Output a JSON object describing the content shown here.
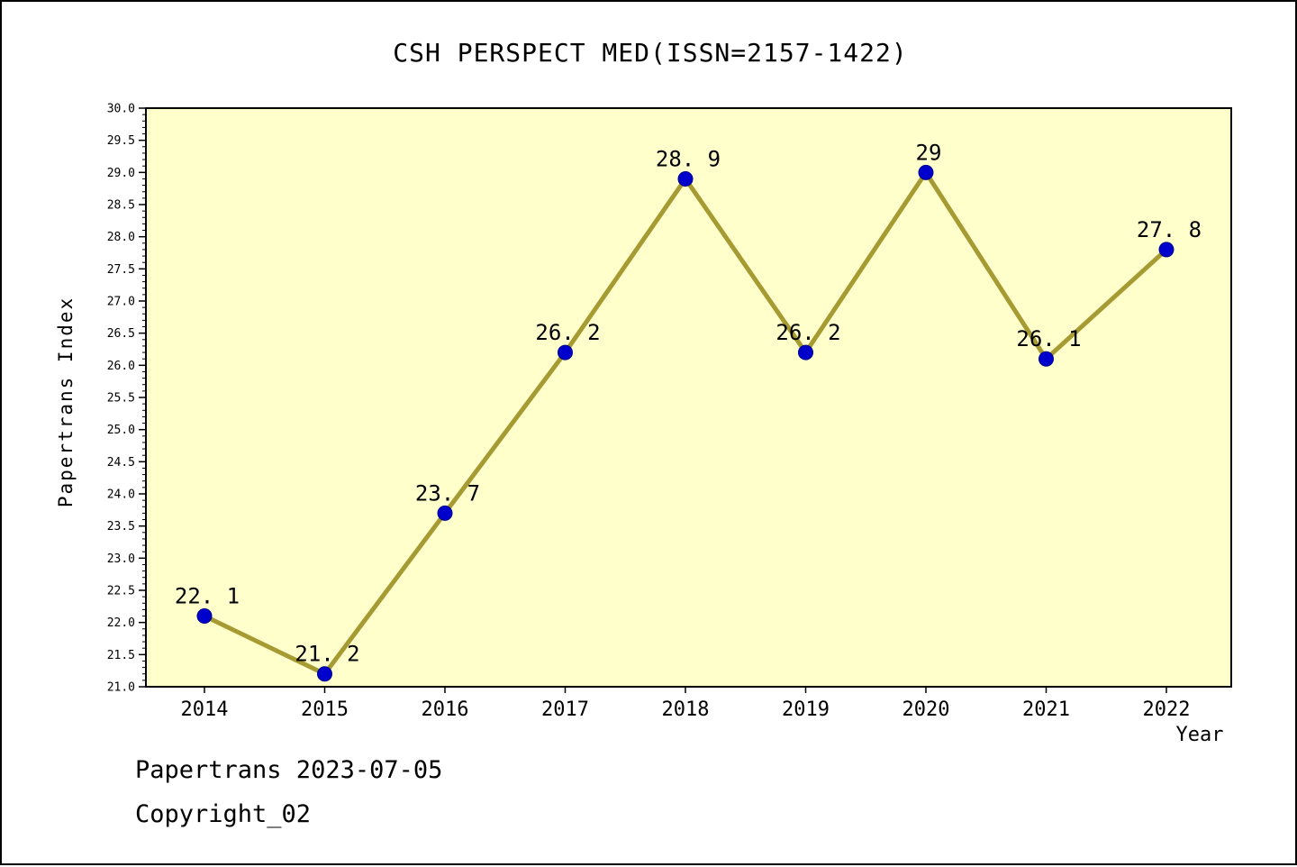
{
  "page": {
    "background": "#ffffff",
    "border_color": "#000000"
  },
  "chart_data": {
    "type": "line",
    "title": "CSH PERSPECT MED(ISSN=2157-1422)",
    "xlabel": "Year",
    "ylabel": "Papertrans Index",
    "categories": [
      "2014",
      "2015",
      "2016",
      "2017",
      "2018",
      "2019",
      "2020",
      "2021",
      "2022"
    ],
    "series": [
      {
        "name": "Papertrans Index",
        "values": [
          22.1,
          21.2,
          23.7,
          26.2,
          28.9,
          26.2,
          29,
          26.1,
          27.8
        ],
        "point_labels": [
          "22.1",
          "21.2",
          "23.7",
          "26.2",
          "28.9",
          "26.2",
          "29",
          "26.1",
          "27.8"
        ]
      }
    ],
    "ylim": [
      21.0,
      30.0
    ],
    "y_tick_step": 0.5,
    "y_minor_tick_step": 0.1,
    "grid": false,
    "legend_position": "none",
    "colors": {
      "line": "#a69a33",
      "marker_fill": "#0000cd",
      "marker_edge": "#00008b",
      "plot_background": "#ffffcc",
      "axis": "#000000",
      "text": "#000000"
    }
  },
  "footer": {
    "line1": "Papertrans 2023-07-05",
    "line2": "Copyright_02"
  }
}
